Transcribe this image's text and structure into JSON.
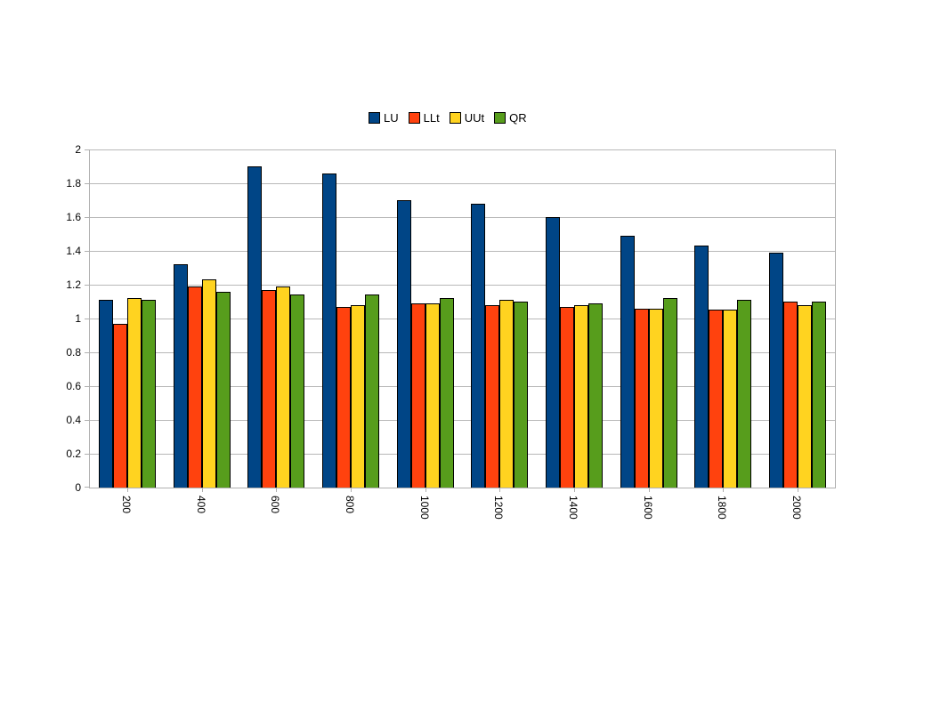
{
  "chart_data": {
    "type": "bar",
    "title": "",
    "xlabel": "",
    "ylabel": "",
    "categories": [
      "200",
      "400",
      "600",
      "800",
      "1000",
      "1200",
      "1400",
      "1600",
      "1800",
      "2000"
    ],
    "series": [
      {
        "name": "LU",
        "color": "#004586",
        "values": [
          1.11,
          1.32,
          1.9,
          1.86,
          1.7,
          1.68,
          1.6,
          1.49,
          1.43,
          1.39
        ]
      },
      {
        "name": "LLt",
        "color": "#FF420E",
        "values": [
          0.97,
          1.19,
          1.17,
          1.07,
          1.09,
          1.08,
          1.07,
          1.06,
          1.05,
          1.1
        ]
      },
      {
        "name": "UUt",
        "color": "#FFD320",
        "values": [
          1.12,
          1.23,
          1.19,
          1.08,
          1.09,
          1.11,
          1.08,
          1.06,
          1.05,
          1.08
        ]
      },
      {
        "name": "QR",
        "color": "#579D1C",
        "values": [
          1.11,
          1.16,
          1.14,
          1.14,
          1.12,
          1.1,
          1.09,
          1.12,
          1.11,
          1.1
        ]
      }
    ],
    "ylim": [
      0,
      2
    ],
    "ytick_step": 0.2,
    "ytick_labels": [
      "0",
      "0.2",
      "0.4",
      "0.6",
      "0.8",
      "1",
      "1.2",
      "1.4",
      "1.6",
      "1.8",
      "2"
    ],
    "grid": true,
    "legend_position": "top",
    "x_label_rotation_deg": 90
  },
  "style": {
    "grid_color": "#b8b8b8",
    "axis_color": "#b0b0b0",
    "bar_border_color": "#000000",
    "background": "#ffffff",
    "text_color": "#000000"
  }
}
